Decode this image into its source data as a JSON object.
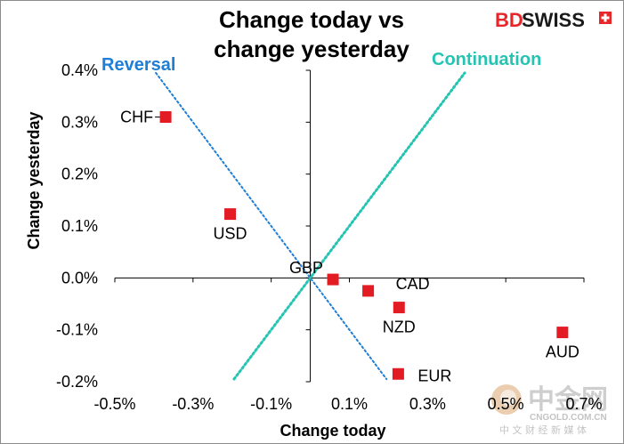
{
  "chart_data": {
    "type": "scatter",
    "title_lines": [
      "Change today vs",
      "change yesterday"
    ],
    "xlabel": "Change today",
    "ylabel": "Change yesterday",
    "xlim": [
      -0.5,
      0.7
    ],
    "ylim": [
      -0.2,
      0.4
    ],
    "x_ticks": [
      {
        "value": -0.5,
        "label": "-0.5%"
      },
      {
        "value": -0.3,
        "label": "-0.3%"
      },
      {
        "value": -0.1,
        "label": "-0.1%"
      },
      {
        "value": 0.1,
        "label": "0.1%"
      },
      {
        "value": 0.3,
        "label": "0.3%"
      },
      {
        "value": 0.5,
        "label": "0.5%"
      },
      {
        "value": 0.7,
        "label": "0.7%"
      }
    ],
    "y_ticks": [
      {
        "value": 0.4,
        "label": "0.4%"
      },
      {
        "value": 0.3,
        "label": "0.3%"
      },
      {
        "value": 0.2,
        "label": "0.2%"
      },
      {
        "value": 0.1,
        "label": "0.1%"
      },
      {
        "value": 0.0,
        "label": "0.0%"
      },
      {
        "value": -0.1,
        "label": "-0.1%"
      },
      {
        "value": -0.2,
        "label": "-0.2%"
      }
    ],
    "points": [
      {
        "label": "CHF",
        "x": -0.37,
        "y": 0.31,
        "label_pos": "left"
      },
      {
        "label": "USD",
        "x": -0.205,
        "y": 0.123,
        "label_pos": "below"
      },
      {
        "label": "GBP",
        "x": 0.058,
        "y": -0.003,
        "label_pos": "above-left"
      },
      {
        "label": "CAD",
        "x": 0.148,
        "y": -0.025,
        "label_pos": "above-right"
      },
      {
        "label": "NZD",
        "x": 0.227,
        "y": -0.057,
        "label_pos": "below"
      },
      {
        "label": "EUR",
        "x": 0.225,
        "y": -0.185,
        "label_pos": "right"
      },
      {
        "label": "AUD",
        "x": 0.645,
        "y": -0.105,
        "label_pos": "below"
      }
    ],
    "reference_lines": [
      {
        "name": "Reversal",
        "color": "#1f7ed6",
        "from": [
          -0.395,
          0.395
        ],
        "to": [
          0.195,
          -0.195
        ]
      },
      {
        "name": "Continuation",
        "color": "#25c4b2",
        "from": [
          -0.195,
          -0.195
        ],
        "to": [
          0.395,
          0.395
        ]
      }
    ],
    "marker_color": "#e31b23",
    "grid": false
  },
  "logo": {
    "part1": "BD",
    "part2": "SWISS"
  },
  "watermark": {
    "brand": "中金网",
    "url": "CNGOLD.COM.CN",
    "subtitle": "中 文 财 经 新 媒 体"
  }
}
